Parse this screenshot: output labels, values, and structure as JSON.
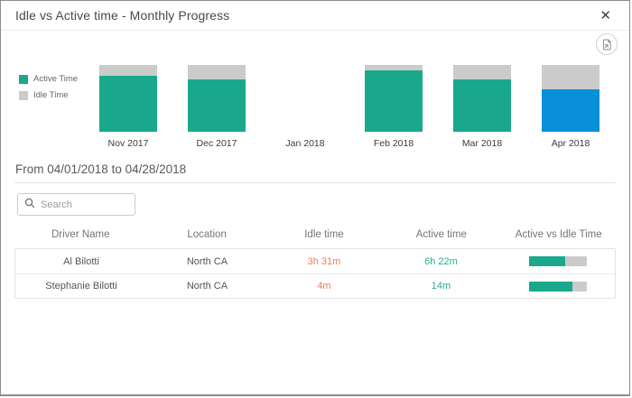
{
  "dialog": {
    "title": "Idle vs Active time - Monthly Progress",
    "close_icon": "close-x-glyph"
  },
  "toolbar": {
    "export_icon": "export-document-icon"
  },
  "colors": {
    "active": "#1aa88c",
    "idle": "#cbcbcb",
    "selected_active": "#0790d8",
    "idle_text": "#e87e5c",
    "active_text": "#2fa693"
  },
  "chart_data": {
    "type": "bar",
    "stacked": true,
    "unit": "percent_of_total_time",
    "categories": [
      "Nov 2017",
      "Dec 2017",
      "Jan 2018",
      "Feb 2018",
      "Mar 2018",
      "Apr 2018"
    ],
    "series": [
      {
        "name": "Active Time",
        "values": [
          84,
          79,
          0,
          92,
          79,
          63
        ]
      },
      {
        "name": "Idle Time",
        "values": [
          16,
          21,
          0,
          8,
          21,
          37
        ]
      }
    ],
    "no_data_categories": [
      "Jan 2018"
    ],
    "selected_category": "Apr 2018",
    "legend_position": "left",
    "legend": [
      {
        "label": "Active Time",
        "color": "#1aa88c"
      },
      {
        "label": "Idle Time",
        "color": "#cbcbcb"
      }
    ]
  },
  "period": {
    "heading": "From 04/01/2018 to 04/28/2018"
  },
  "search": {
    "placeholder": "Search",
    "value": ""
  },
  "table": {
    "columns": [
      "Driver Name",
      "Location",
      "Idle time",
      "Active time",
      "Active vs Idle Time"
    ],
    "rows": [
      {
        "driver": "Al Bilotti",
        "location": "North CA",
        "idle": "3h 31m",
        "active": "6h 22m",
        "active_pct": 62
      },
      {
        "driver": "Stephanie Bilotti",
        "location": "North CA",
        "idle": "4m",
        "active": "14m",
        "active_pct": 75
      }
    ]
  }
}
